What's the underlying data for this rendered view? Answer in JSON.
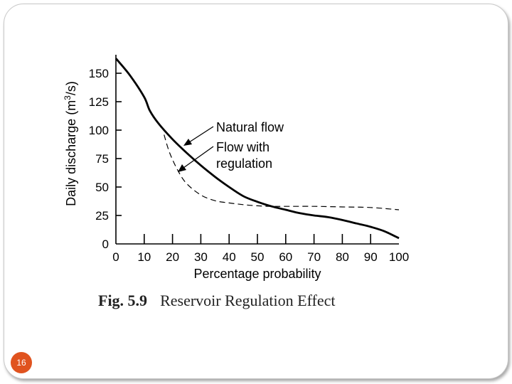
{
  "chart_data": {
    "type": "line",
    "x": [
      0,
      5,
      10,
      12,
      15,
      20,
      25,
      30,
      35,
      40,
      45,
      50,
      55,
      60,
      65,
      70,
      75,
      80,
      85,
      90,
      95,
      100
    ],
    "series": [
      {
        "name": "Natural flow",
        "style": "solid",
        "values": [
          163,
          148,
          129,
          117,
          106,
          92,
          80,
          69,
          59,
          50,
          42,
          37,
          33,
          30,
          27,
          25,
          23.5,
          21,
          18,
          15,
          11,
          5
        ],
        "annotation": "Natural flow"
      },
      {
        "name": "Flow with regulation",
        "style": "dashed",
        "x": [
          17,
          19,
          22,
          25,
          30,
          35,
          40,
          45,
          50,
          55,
          60,
          70,
          80,
          90,
          100
        ],
        "values": [
          96,
          80,
          64,
          53,
          43,
          38,
          36,
          34.5,
          33.5,
          33,
          33,
          33,
          32.5,
          32,
          30
        ],
        "annotation_lines": [
          "Flow with",
          "regulation"
        ]
      }
    ],
    "xlabel": "Percentage probability",
    "ylabel_main": "Daily discharge (m",
    "ylabel_sup": "3",
    "ylabel_end": "/s)",
    "xlim": [
      0,
      100
    ],
    "ylim": [
      0,
      165
    ],
    "xticks": [
      0,
      10,
      20,
      30,
      40,
      50,
      60,
      70,
      80,
      90,
      100
    ],
    "xtick_labels": [
      "0",
      "10",
      "20",
      "30",
      "40",
      "50",
      "60",
      "70",
      "80",
      "90",
      "100"
    ],
    "yticks": [
      0,
      25,
      50,
      75,
      100,
      125,
      150
    ],
    "ytick_labels": [
      "0",
      "25",
      "50",
      "75",
      "100",
      "125",
      "150"
    ]
  },
  "caption": {
    "number": "Fig. 5.9",
    "title": "Reservoir Regulation Effect"
  },
  "slide": {
    "page_number": "16",
    "accent_color": "#e0531f"
  }
}
